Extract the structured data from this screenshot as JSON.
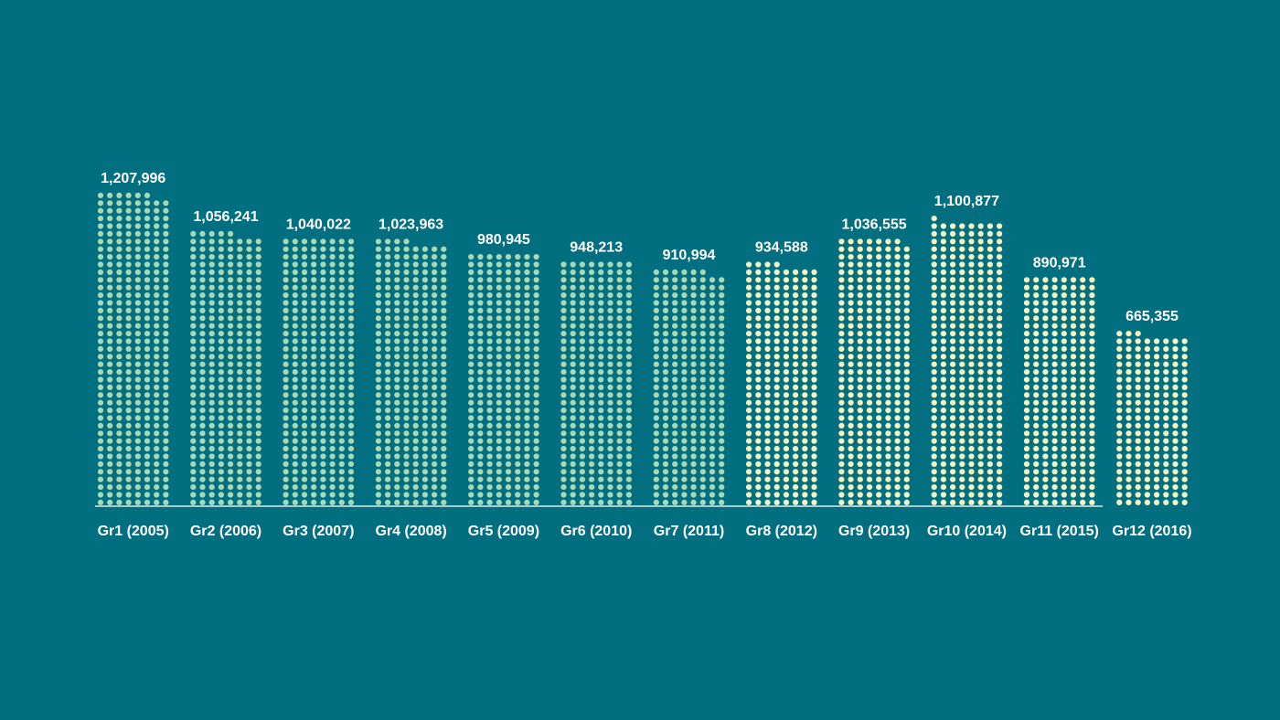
{
  "chart_data": {
    "type": "bar",
    "style": "dot-matrix",
    "title": "",
    "xlabel": "",
    "ylabel": "",
    "ylim": [
      0,
      1250000
    ],
    "grid": false,
    "legend": "none",
    "categories": [
      "Gr1 (2005)",
      "Gr2 (2006)",
      "Gr3 (2007)",
      "Gr4 (2008)",
      "Gr5 (2009)",
      "Gr6 (2010)",
      "Gr7 (2011)",
      "Gr8 (2012)",
      "Gr9 (2013)",
      "Gr10 (2014)",
      "Gr11 (2015)",
      "Gr12 (2016)"
    ],
    "values": [
      1207996,
      1056241,
      1040022,
      1023963,
      980945,
      948213,
      910994,
      934588,
      1036555,
      1100877,
      890971,
      665355
    ],
    "value_labels": [
      "1,207,996",
      "1,056,241",
      "1,040,022",
      "1,023,963",
      "980,945",
      "948,213",
      "910,994",
      "934,588",
      "1,036,555",
      "1,100,877",
      "890,971",
      "665,355"
    ],
    "colors": {
      "background": "#016f80",
      "dot_past": "#a9d8b5",
      "dot_recent": "#f6f5c0",
      "axis": "#d9ece8",
      "text": "#ffffff"
    },
    "recent_from_index": 7
  }
}
